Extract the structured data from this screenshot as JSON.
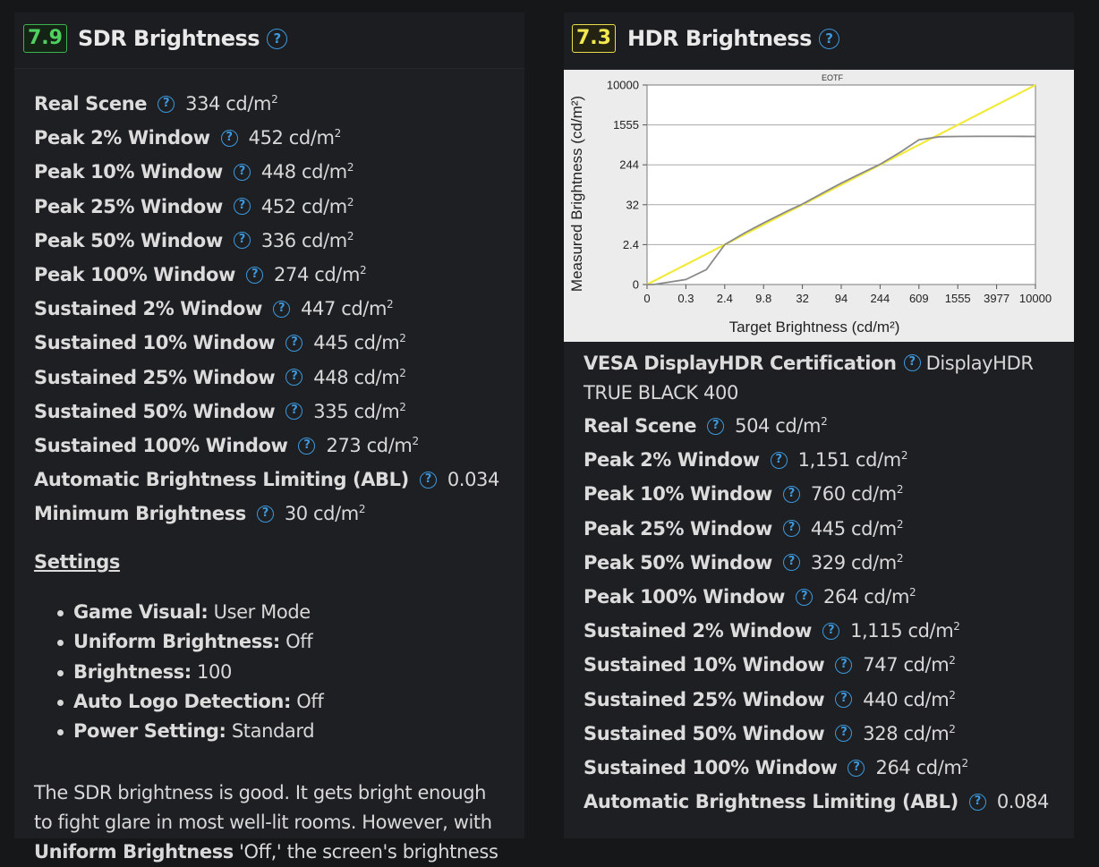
{
  "sdr": {
    "score": "7.9",
    "title": "SDR Brightness",
    "rows": [
      {
        "label": "Real Scene",
        "value": "334 cd/m",
        "sup": "2"
      },
      {
        "label": "Peak 2% Window",
        "value": "452 cd/m",
        "sup": "2"
      },
      {
        "label": "Peak 10% Window",
        "value": "448 cd/m",
        "sup": "2"
      },
      {
        "label": "Peak 25% Window",
        "value": "452 cd/m",
        "sup": "2"
      },
      {
        "label": "Peak 50% Window",
        "value": "336 cd/m",
        "sup": "2"
      },
      {
        "label": "Peak 100% Window",
        "value": "274 cd/m",
        "sup": "2"
      },
      {
        "label": "Sustained 2% Window",
        "value": "447 cd/m",
        "sup": "2"
      },
      {
        "label": "Sustained 10% Window",
        "value": "445 cd/m",
        "sup": "2"
      },
      {
        "label": "Sustained 25% Window",
        "value": "448 cd/m",
        "sup": "2"
      },
      {
        "label": "Sustained 50% Window",
        "value": "335 cd/m",
        "sup": "2"
      },
      {
        "label": "Sustained 100% Window",
        "value": "273 cd/m",
        "sup": "2"
      },
      {
        "label": "Automatic Brightness Limiting (ABL)",
        "value": "0.034",
        "sup": ""
      },
      {
        "label": "Minimum Brightness",
        "value": "30 cd/m",
        "sup": "2"
      }
    ],
    "settings_title": "Settings",
    "settings": [
      {
        "label": "Game Visual:",
        "value": " User Mode"
      },
      {
        "label": "Uniform Brightness:",
        "value": " Off"
      },
      {
        "label": "Brightness:",
        "value": " 100"
      },
      {
        "label": "Auto Logo Detection:",
        "value": " Off"
      },
      {
        "label": "Power Setting:",
        "value": " Standard"
      }
    ],
    "paragraph_start": "The SDR brightness is good. It gets bright enough to fight glare in most well-lit rooms. However, with ",
    "paragraph_bold": "Uniform Brightness",
    "paragraph_end": " 'Off,' the screen's brightness"
  },
  "hdr": {
    "score": "7.3",
    "title": "HDR Brightness",
    "cert_label": "VESA DisplayHDR Certification",
    "cert_value": "DisplayHDR TRUE BLACK 400",
    "rows": [
      {
        "label": "Real Scene",
        "value": "504 cd/m",
        "sup": "2"
      },
      {
        "label": "Peak 2% Window",
        "value": "1,151 cd/m",
        "sup": "2"
      },
      {
        "label": "Peak 10% Window",
        "value": "760 cd/m",
        "sup": "2"
      },
      {
        "label": "Peak 25% Window",
        "value": "445 cd/m",
        "sup": "2"
      },
      {
        "label": "Peak 50% Window",
        "value": "329 cd/m",
        "sup": "2"
      },
      {
        "label": "Peak 100% Window",
        "value": "264 cd/m",
        "sup": "2"
      },
      {
        "label": "Sustained 2% Window",
        "value": "1,115 cd/m",
        "sup": "2"
      },
      {
        "label": "Sustained 10% Window",
        "value": "747 cd/m",
        "sup": "2"
      },
      {
        "label": "Sustained 25% Window",
        "value": "440 cd/m",
        "sup": "2"
      },
      {
        "label": "Sustained 50% Window",
        "value": "328 cd/m",
        "sup": "2"
      },
      {
        "label": "Sustained 100% Window",
        "value": "264 cd/m",
        "sup": "2"
      },
      {
        "label": "Automatic Brightness Limiting (ABL)",
        "value": "0.084",
        "sup": ""
      }
    ]
  },
  "help_glyph": "?",
  "help_icon": "question-circle-icon",
  "colors": {
    "accent": "#3d98dc",
    "score_green": "#4fd15f",
    "score_yellow": "#f2e84f",
    "target_line": "#f2ea3a",
    "measured_line": "#8a8a8a"
  },
  "chart_data": {
    "type": "line",
    "title": "EOTF",
    "xlabel": "Target Brightness (cd/m²)",
    "ylabel": "Measured Brightness (cd/m²)",
    "x_ticks": [
      "0",
      "0.3",
      "2.4",
      "9.8",
      "32",
      "94",
      "244",
      "609",
      "1555",
      "3977",
      "10000"
    ],
    "y_ticks": [
      "0",
      "2.4",
      "32",
      "244",
      "1555",
      "10000"
    ],
    "grid": "horizontal",
    "series": [
      {
        "name": "",
        "color": "#f2ea3a",
        "x": [
          0,
          10000
        ],
        "y": [
          0,
          10000
        ]
      },
      {
        "name": "",
        "color": "#8a8a8a",
        "x": [
          0,
          0.05,
          0.3,
          0.9,
          2.4,
          5,
          9.8,
          20,
          32,
          60,
          94,
          150,
          244,
          400,
          609,
          1000,
          1555,
          2500,
          3977,
          6000,
          10000
        ],
        "y": [
          0,
          0,
          0.3,
          0.9,
          2.4,
          5.2,
          9.8,
          21,
          33,
          62,
          96,
          155,
          250,
          450,
          780,
          900,
          910,
          912,
          912,
          912,
          910
        ]
      }
    ]
  }
}
